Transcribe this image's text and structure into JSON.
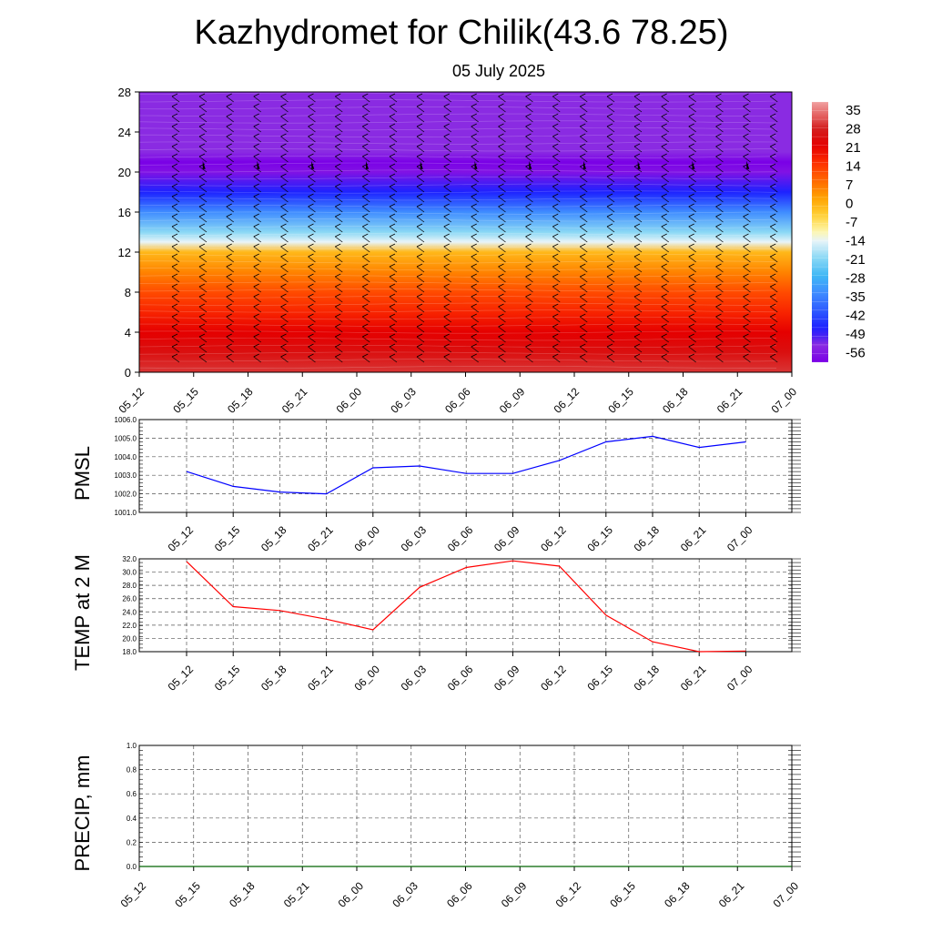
{
  "title": "Kazhydromet for Chilik(43.6 78.25)",
  "subtitle": "05 July 2025",
  "colors": {
    "pmsl_line": "#0000ff",
    "temp_line": "#ff0000",
    "precip_line": "#006400",
    "barb": "#000000"
  },
  "chart_data": [
    {
      "type": "heatmap",
      "title": "",
      "x_ticks": [
        "05_12",
        "05_15",
        "05_18",
        "05_21",
        "06_00",
        "06_03",
        "06_06",
        "06_09",
        "06_12",
        "06_15",
        "06_18",
        "06_21",
        "07_00"
      ],
      "y_ticks": [
        0,
        4,
        8,
        12,
        16,
        20,
        24,
        28
      ],
      "ylim": [
        0,
        28
      ],
      "colorbar": {
        "labels": [
          35,
          28,
          21,
          14,
          7,
          0,
          -7,
          -14,
          -21,
          -28,
          -35,
          -42,
          -49,
          -56
        ],
        "range": [
          -63,
          42
        ]
      },
      "temperature_by_level": [
        {
          "level": 0,
          "value": 33
        },
        {
          "level": 2,
          "value": 28
        },
        {
          "level": 4,
          "value": 24
        },
        {
          "level": 6,
          "value": 19
        },
        {
          "level": 8,
          "value": 14
        },
        {
          "level": 10,
          "value": 7
        },
        {
          "level": 12,
          "value": 0
        },
        {
          "level": 13,
          "value": -14
        },
        {
          "level": 14,
          "value": -21
        },
        {
          "level": 16,
          "value": -35
        },
        {
          "level": 18,
          "value": -49
        },
        {
          "level": 20,
          "value": -60
        },
        {
          "level": 21,
          "value": -63
        },
        {
          "level": 22,
          "value": -56
        },
        {
          "level": 24,
          "value": -56
        },
        {
          "level": 28,
          "value": -56
        }
      ],
      "wind_barbs": true
    },
    {
      "type": "line",
      "ylabel": "PMSL",
      "ylim": [
        1001.0,
        1006.0
      ],
      "y_ticks": [
        "1001.0",
        "1002.0",
        "1003.0",
        "1004.0",
        "1005.0",
        "1006.0"
      ],
      "x": [
        "05_12",
        "05_15",
        "05_18",
        "05_21",
        "06_00",
        "06_03",
        "06_06",
        "06_09",
        "06_12",
        "06_15",
        "06_18",
        "06_21",
        "07_00"
      ],
      "values": [
        1003.2,
        1002.4,
        1002.1,
        1002.0,
        1003.4,
        1003.5,
        1003.1,
        1003.1,
        1003.8,
        1004.8,
        1005.1,
        1004.5,
        1004.8
      ],
      "grid": true
    },
    {
      "type": "line",
      "ylabel": "TEMP at 2 M",
      "ylim": [
        18.0,
        32.0
      ],
      "y_ticks": [
        "18.0",
        "20.0",
        "22.0",
        "24.0",
        "26.0",
        "28.0",
        "30.0",
        "32.0"
      ],
      "x": [
        "05_12",
        "05_15",
        "05_18",
        "05_21",
        "06_00",
        "06_03",
        "06_06",
        "06_09",
        "06_12",
        "06_15",
        "06_18",
        "06_21",
        "07_00"
      ],
      "values": [
        31.6,
        24.8,
        24.2,
        22.9,
        21.3,
        27.7,
        30.7,
        31.7,
        30.9,
        23.5,
        19.5,
        18.0,
        18.1
      ],
      "grid": true
    },
    {
      "type": "line",
      "ylabel": "PRECIP, mm",
      "ylim": [
        0.0,
        1.0
      ],
      "y_ticks": [
        "0.0",
        "0.2",
        "0.4",
        "0.6",
        "0.8",
        "1.0"
      ],
      "x": [
        "05_12",
        "05_15",
        "05_18",
        "05_21",
        "06_00",
        "06_03",
        "06_06",
        "06_09",
        "06_12",
        "06_15",
        "06_18",
        "06_21",
        "07_00"
      ],
      "values": [
        0,
        0,
        0,
        0,
        0,
        0,
        0,
        0,
        0,
        0,
        0,
        0,
        0
      ],
      "grid": true
    }
  ]
}
